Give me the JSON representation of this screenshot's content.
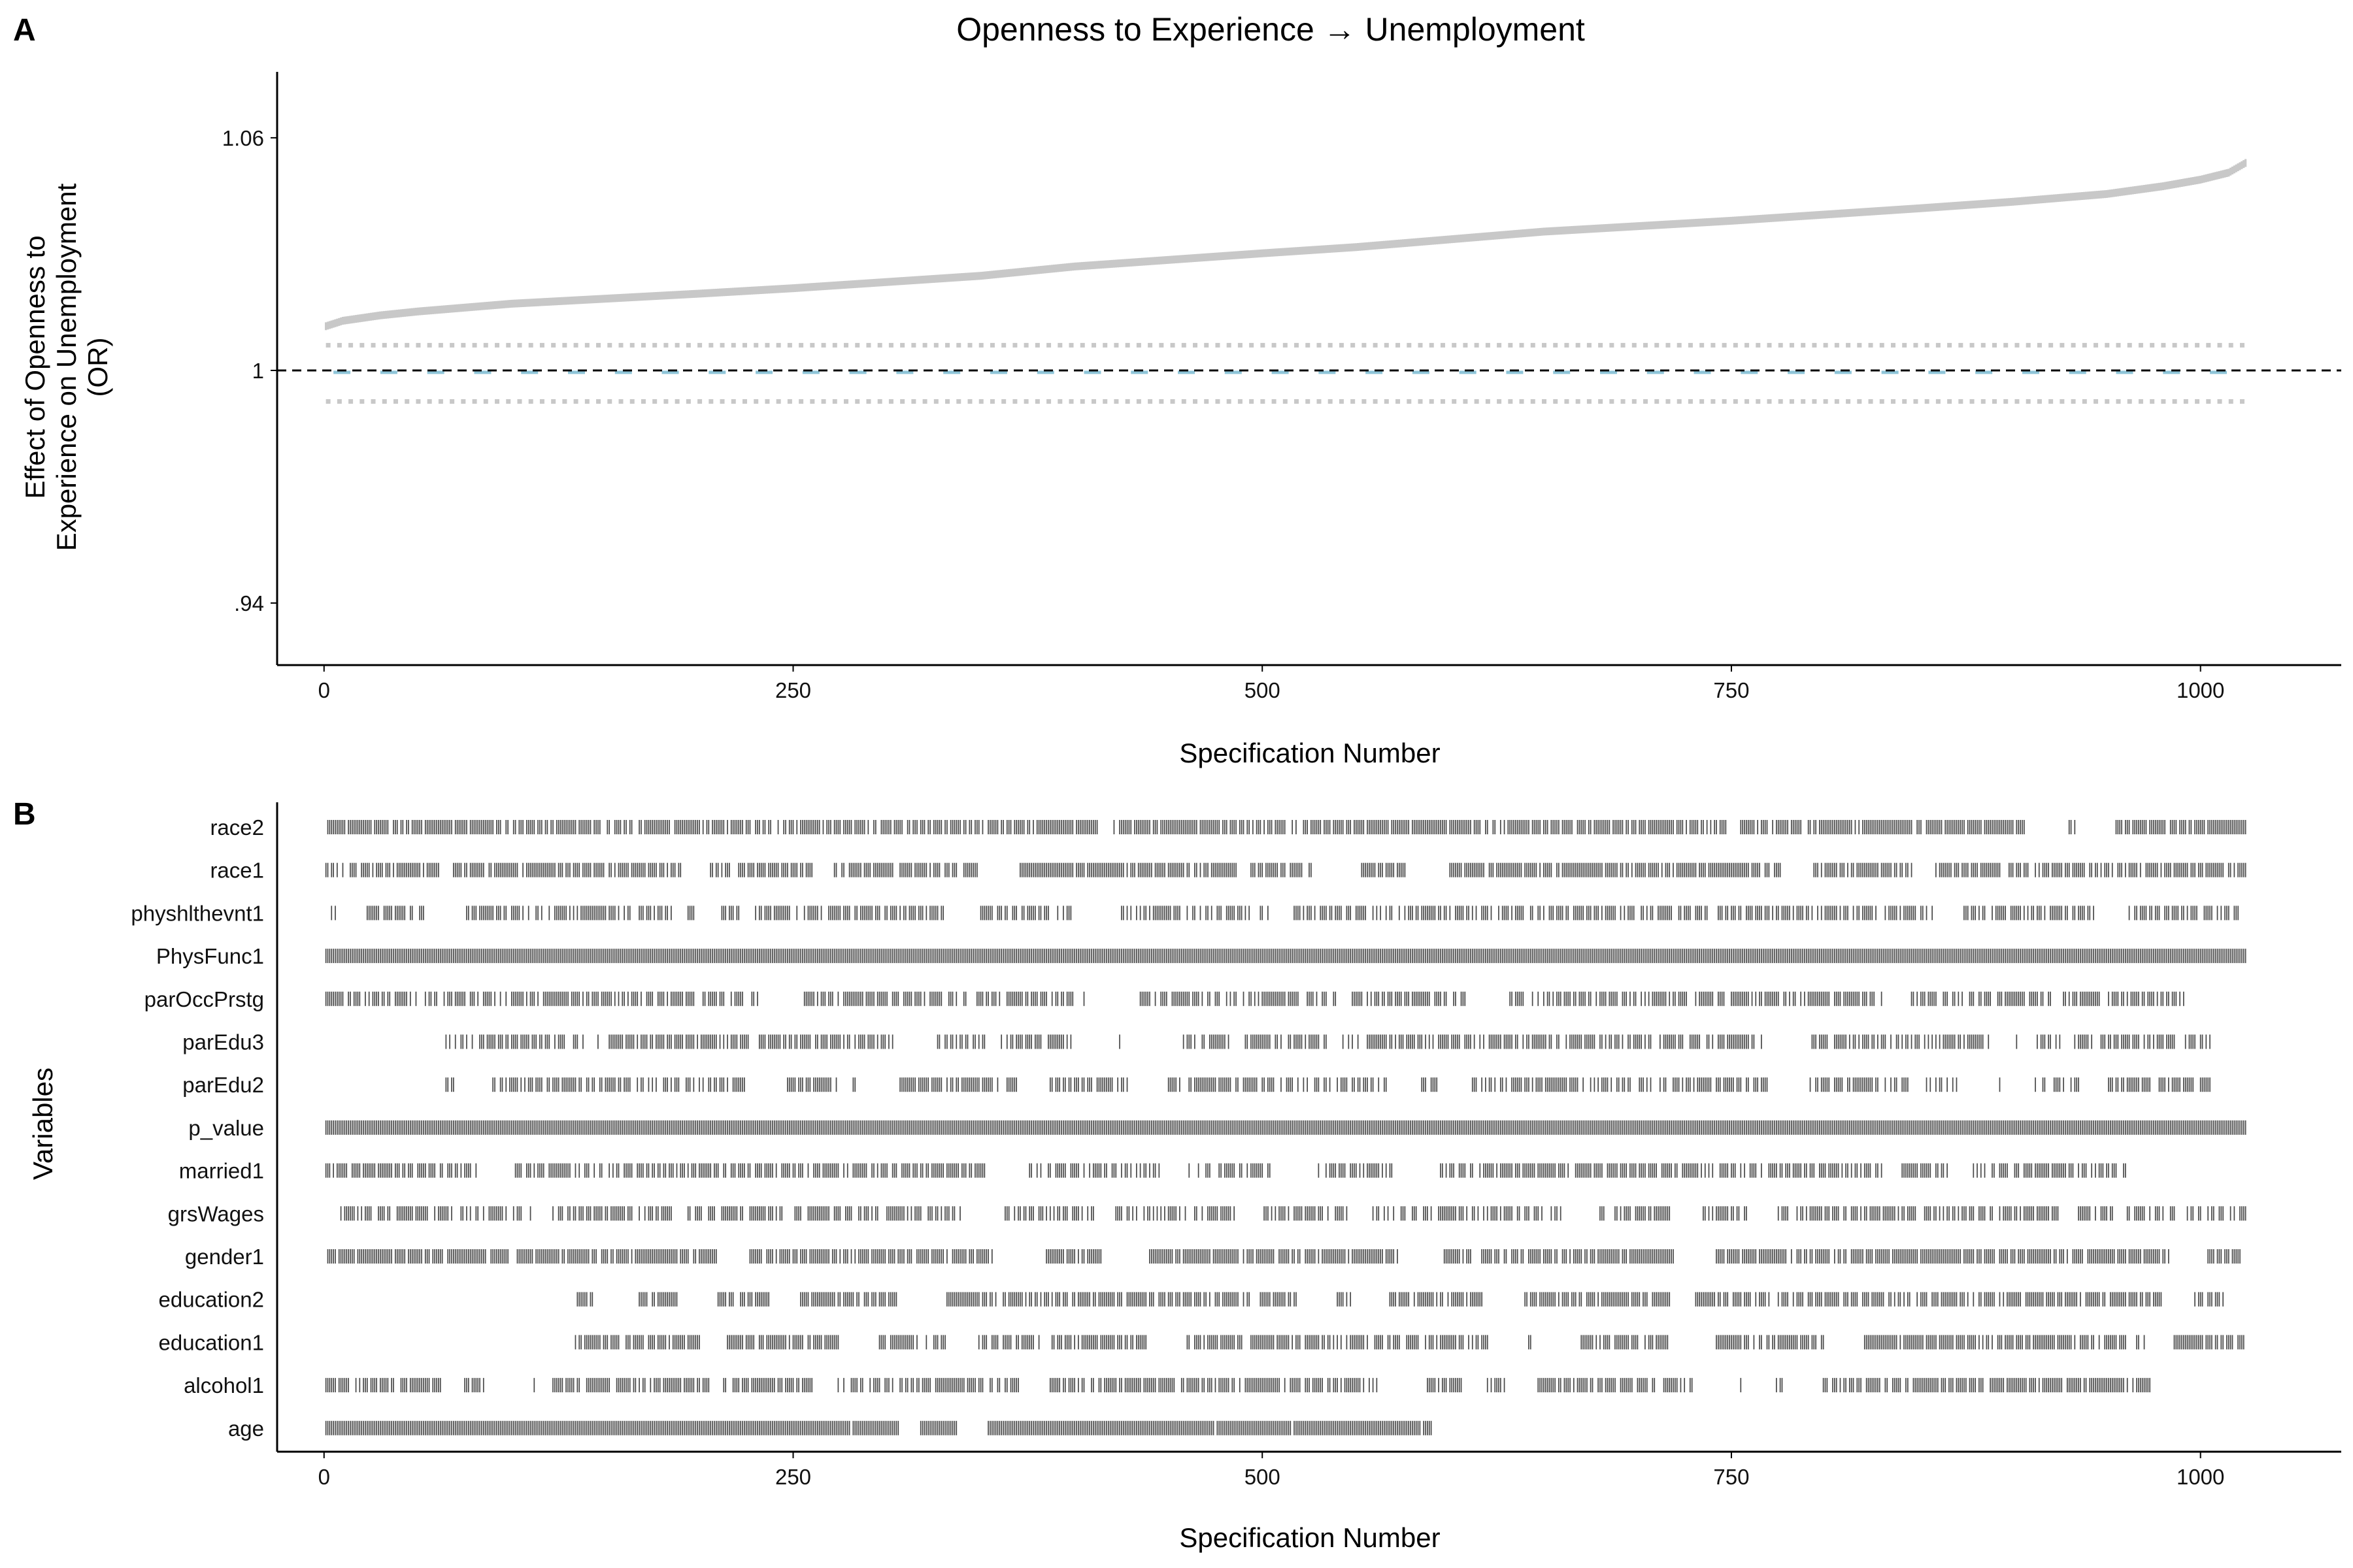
{
  "chart_data": [
    {
      "panel": "A",
      "type": "scatter",
      "title": "Openness to Experience → Unemployment",
      "xlabel": "Specification Number",
      "ylabel": [
        "Effect of Openness to",
        "Experience on Unemployment",
        "(OR)"
      ],
      "xlim": [
        -25,
        1075
      ],
      "ylim": [
        0.924,
        1.077
      ],
      "x_ticks": [
        0,
        250,
        500,
        750,
        1000
      ],
      "x_tick_labels": [
        "0",
        "250",
        "500",
        "750",
        "1000"
      ],
      "y_ticks": [
        0.94,
        1.0,
        1.06
      ],
      "y_tick_labels": [
        ".94",
        "1",
        "1.06"
      ],
      "reference_line": {
        "y": 1,
        "style": "dashed"
      },
      "n_specifications": 1024,
      "grid": false,
      "series": [
        {
          "role": "upper confidence bound",
          "color": "#c8c8c8",
          "sorted_curve": [
            [
              1,
              1.0114
            ],
            [
              10,
              1.0128
            ],
            [
              30,
              1.0142
            ],
            [
              50,
              1.0152
            ],
            [
              100,
              1.0172
            ],
            [
              150,
              1.0185
            ],
            [
              200,
              1.0198
            ],
            [
              250,
              1.0212
            ],
            [
              300,
              1.0228
            ],
            [
              350,
              1.0244
            ],
            [
              400,
              1.0268
            ],
            [
              450,
              1.0285
            ],
            [
              500,
              1.0302
            ],
            [
              550,
              1.0318
            ],
            [
              600,
              1.0338
            ],
            [
              650,
              1.0358
            ],
            [
              700,
              1.0372
            ],
            [
              750,
              1.0386
            ],
            [
              800,
              1.0402
            ],
            [
              850,
              1.0418
            ],
            [
              900,
              1.0435
            ],
            [
              950,
              1.0455
            ],
            [
              980,
              1.0475
            ],
            [
              1000,
              1.0492
            ],
            [
              1015,
              1.051
            ],
            [
              1024,
              1.0535
            ]
          ]
        },
        {
          "role": "dotted band upper",
          "color": "#c8c8c8",
          "y": 1.0065
        },
        {
          "role": "point estimate (OR)",
          "color": "#8ec5d8",
          "y": 0.9995
        },
        {
          "role": "dotted band lower",
          "color": "#c8c8c8",
          "y": 0.992
        }
      ]
    },
    {
      "panel": "B",
      "type": "heatmap",
      "xlabel": "Specification Number",
      "ylabel": "Variables",
      "xlim": [
        -25,
        1075
      ],
      "x_ticks": [
        0,
        250,
        500,
        750,
        1000
      ],
      "x_tick_labels": [
        "0",
        "250",
        "500",
        "750",
        "1000"
      ],
      "mark_color": "#4a4a4a",
      "n_specifications": 1024,
      "variables": [
        {
          "name": "race2",
          "included_ranges": [
            [
              1,
              1024
            ]
          ],
          "density": 0.62
        },
        {
          "name": "race1",
          "included_ranges": [
            [
              1,
              1024
            ]
          ],
          "density": 0.62
        },
        {
          "name": "physhlthevnt1",
          "included_ranges": [
            [
              4,
              1020
            ]
          ],
          "density": 0.42
        },
        {
          "name": "PhysFunc1",
          "included_ranges": [
            [
              1,
              1024
            ]
          ],
          "density": 1.0
        },
        {
          "name": "parOccPrstg",
          "included_ranges": [
            [
              1,
              1012
            ]
          ],
          "density": 0.45
        },
        {
          "name": "parEdu3",
          "included_ranges": [
            [
              64,
              1005
            ]
          ],
          "density": 0.45
        },
        {
          "name": "parEdu2",
          "included_ranges": [
            [
              64,
              1005
            ]
          ],
          "density": 0.45
        },
        {
          "name": "p_value",
          "included_ranges": [
            [
              1,
              1024
            ]
          ],
          "density": 1.0
        },
        {
          "name": "married1",
          "included_ranges": [
            [
              1,
              960
            ]
          ],
          "density": 0.48
        },
        {
          "name": "grsWages",
          "included_ranges": [
            [
              9,
              1024
            ]
          ],
          "density": 0.45
        },
        {
          "name": "gender1",
          "included_ranges": [
            [
              1,
              1022
            ]
          ],
          "density": 0.62
        },
        {
          "name": "education2",
          "included_ranges": [
            [
              134,
              1024
            ]
          ],
          "density": 0.55
        },
        {
          "name": "education1",
          "included_ranges": [
            [
              134,
              1024
            ]
          ],
          "density": 0.55
        },
        {
          "name": "alcohol1",
          "included_ranges": [
            [
              1,
              973
            ]
          ],
          "density": 0.55
        },
        {
          "name": "age",
          "included_ranges": [
            [
              1,
              590
            ]
          ],
          "density": 0.78
        }
      ]
    }
  ]
}
